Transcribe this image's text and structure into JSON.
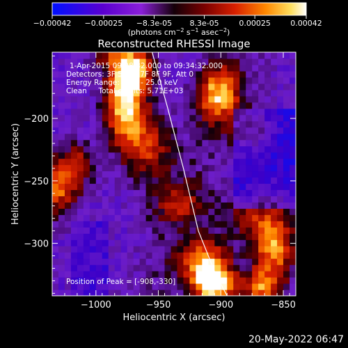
{
  "chart_data": {
    "type": "heatmap",
    "title": "Reconstructed RHESSI Image",
    "xlabel": "Heliocentric X (arcsec)",
    "ylabel": "Heliocentric Y (arcsec)",
    "xlim": [
      -1035,
      -840
    ],
    "ylim": [
      -342,
      -147
    ],
    "xticks": [
      -1000,
      -950,
      -900,
      -850
    ],
    "xtick_labels": [
      "−1000",
      "−950",
      "−900",
      "−850"
    ],
    "yticks": [
      -200,
      -250,
      -300
    ],
    "ytick_labels": [
      "−200",
      "−250",
      "−300"
    ],
    "colorbar": {
      "min": -0.00042,
      "max": 0.00042,
      "ticks": [
        -0.00042,
        -0.00025,
        -8.3e-05,
        8.3e-05,
        0.00025,
        0.00042
      ],
      "tick_labels": [
        "−0.00042",
        "−0.00025",
        "−8.3e-05",
        "8.3e-05",
        "0.00025",
        "0.00042"
      ],
      "unit_label": "(photons cm⁻² s⁻¹ asec⁻²)",
      "unit_parts": [
        "(photons cm",
        "−2",
        " s",
        "−1",
        " asec",
        "−2",
        ")"
      ]
    },
    "annotations": {
      "time": "1-Apr-2015 09:28:32.000 to 09:34:32.000",
      "detectors": "Detectors: 3F 5F 6F 7F 8F 9F, Att 0",
      "energy": "Energy Range: 12.0 - 25.0 keV",
      "clean": "Clean     Total counts: 5.71E+03",
      "peak": "Position of Peak = [-908,-330]"
    },
    "peak": {
      "x": -908,
      "y": -330
    },
    "limb_curve": {
      "x": [
        -955,
        -943,
        -930,
        -918,
        -904,
        -895
      ],
      "y": [
        -147,
        -190,
        -240,
        -290,
        -325,
        -342
      ]
    },
    "colors": [
      "#0010ff",
      "#3a00c0",
      "#8a1fd8",
      "#140008",
      "#7a0000",
      "#d82000",
      "#ff8800",
      "#ffe060",
      "#ffffff"
    ]
  },
  "footer": {
    "date": "20-May-2022 06:47"
  }
}
